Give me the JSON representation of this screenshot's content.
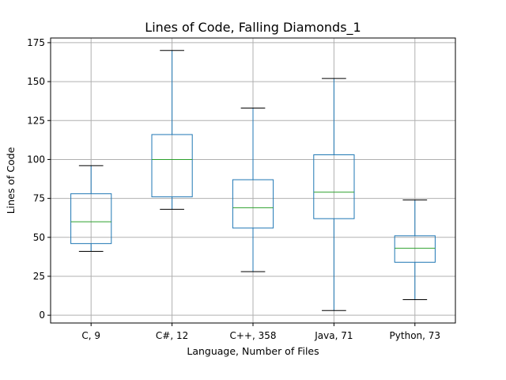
{
  "chart_data": {
    "type": "box",
    "title": "Lines of Code, Falling Diamonds_1",
    "xlabel": "Language, Number of Files",
    "ylabel": "Lines of Code",
    "ylim": [
      -5,
      178
    ],
    "yticks": [
      0,
      25,
      50,
      75,
      100,
      125,
      150,
      175
    ],
    "grid": true,
    "categories": [
      "C, 9",
      "C#, 12",
      "C++, 358",
      "Java, 71",
      "Python, 73"
    ],
    "boxes": [
      {
        "whisker_low": 41,
        "q1": 46,
        "median": 60,
        "q3": 78,
        "whisker_high": 96
      },
      {
        "whisker_low": 68,
        "q1": 76,
        "median": 100,
        "q3": 116,
        "whisker_high": 170
      },
      {
        "whisker_low": 28,
        "q1": 56,
        "median": 69,
        "q3": 87,
        "whisker_high": 133
      },
      {
        "whisker_low": 3,
        "q1": 62,
        "median": 79,
        "q3": 103,
        "whisker_high": 152
      },
      {
        "whisker_low": 10,
        "q1": 34,
        "median": 43,
        "q3": 51,
        "whisker_high": 74
      }
    ],
    "colors": {
      "box": "#1f77b4",
      "median": "#2ca02c",
      "whisker_cap": "#000000",
      "grid": "#b0b0b0"
    }
  }
}
